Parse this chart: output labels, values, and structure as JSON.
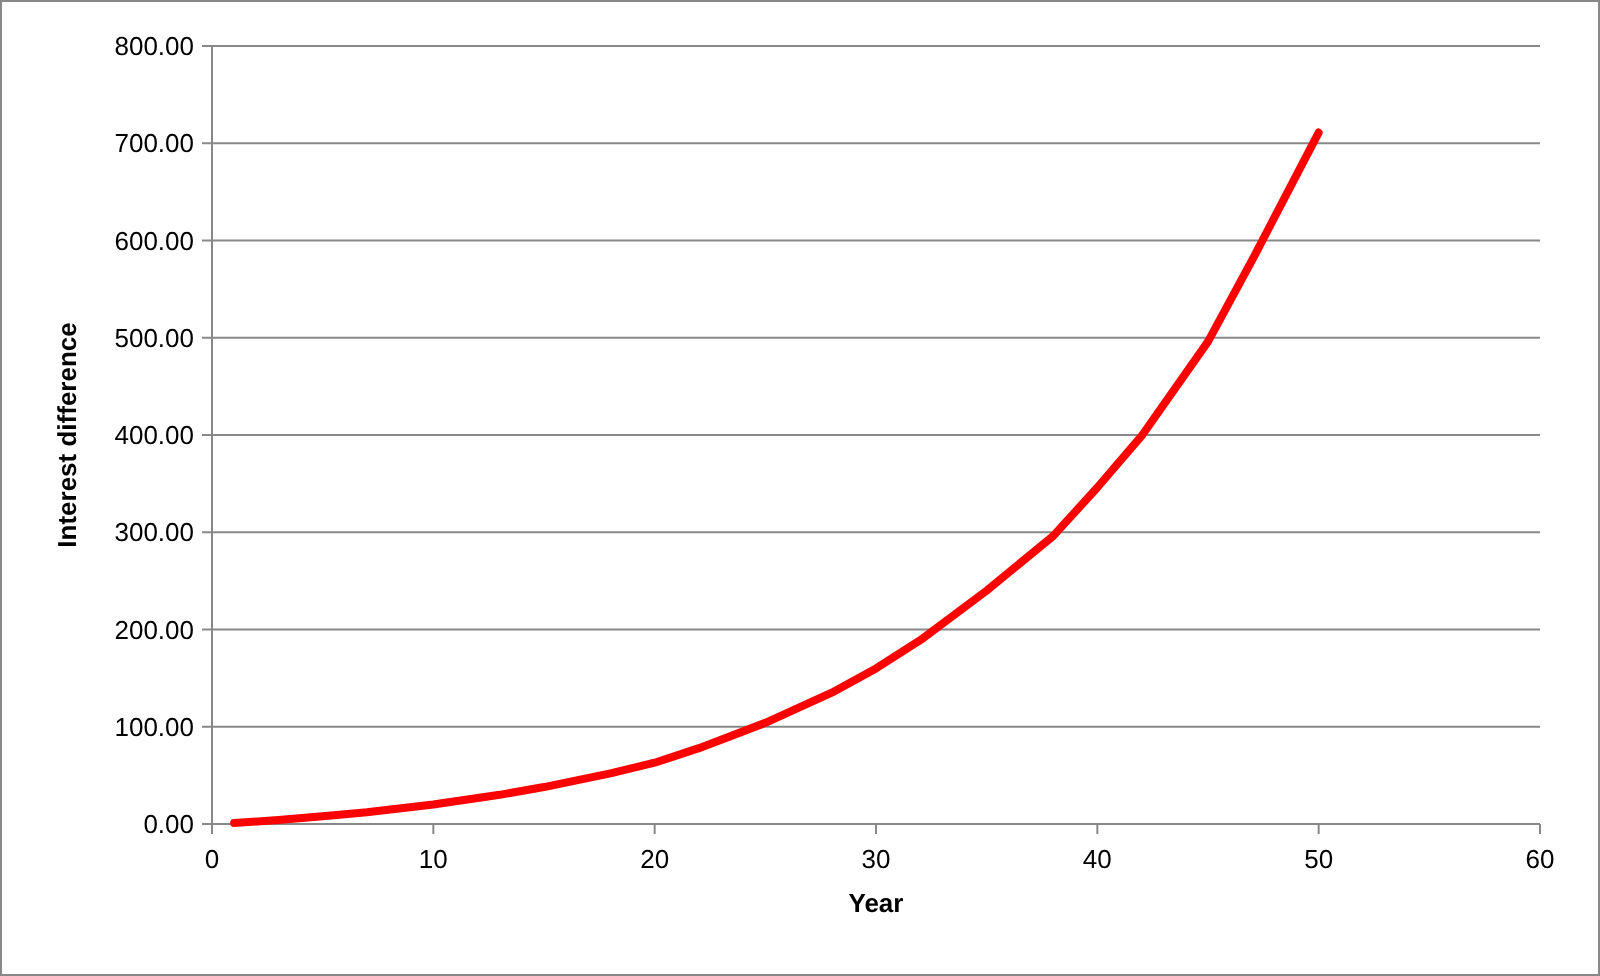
{
  "chart_data": {
    "type": "line",
    "xlabel": "Year",
    "ylabel": "Interest difference",
    "x": [
      1,
      3,
      5,
      7,
      10,
      13,
      15,
      18,
      20,
      22,
      25,
      28,
      30,
      32,
      35,
      38,
      40,
      42,
      45,
      47,
      50
    ],
    "series": [
      {
        "color": "#ff0000",
        "values": [
          1,
          4,
          8,
          12,
          20,
          30,
          38,
          52,
          63,
          78,
          104,
          135,
          160,
          189,
          240,
          296,
          346,
          399,
          496,
          580,
          711
        ]
      }
    ],
    "xlim": [
      0,
      60
    ],
    "xticks": [
      0,
      10,
      20,
      30,
      40,
      50,
      60
    ],
    "ylim": [
      0,
      800
    ],
    "yticks": [
      {
        "value": 0,
        "label": "0.00"
      },
      {
        "value": 100,
        "label": "100.00"
      },
      {
        "value": 200,
        "label": "200.00"
      },
      {
        "value": 300,
        "label": "300.00"
      },
      {
        "value": 400,
        "label": "400.00"
      },
      {
        "value": 500,
        "label": "500.00"
      },
      {
        "value": 600,
        "label": "600.00"
      },
      {
        "value": 700,
        "label": "700.00"
      },
      {
        "value": 800,
        "label": "800.00"
      }
    ],
    "grid": "y",
    "marker": "none",
    "line_style": "solid"
  }
}
